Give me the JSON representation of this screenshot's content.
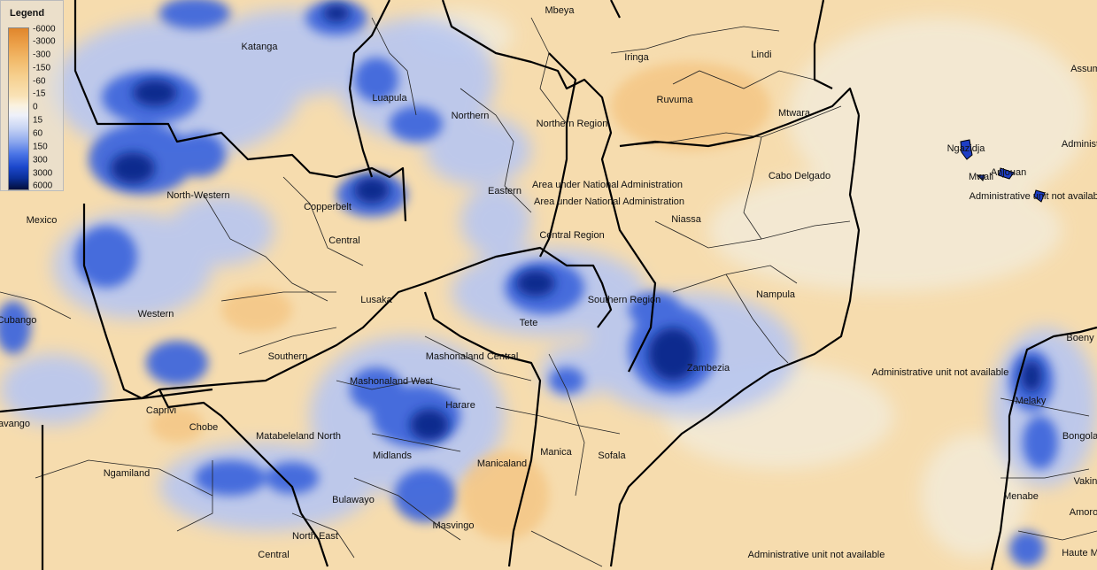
{
  "legend": {
    "title": "Legend",
    "ticks": [
      "-6000",
      "-3000",
      "-300",
      "-150",
      "-60",
      "-15",
      "0",
      "15",
      "60",
      "150",
      "300",
      "3000",
      "6000"
    ],
    "colors": {
      "dry_strong": "#e0862c",
      "dry_mild": "#f6dcae",
      "neutral": "#fbf2e0",
      "wet_mild": "#8fa9ee",
      "wet_strong": "#0a2e98",
      "wet_extreme": "#030f3c"
    }
  },
  "regions": [
    "Mbeya",
    "Katanga",
    "Iringa",
    "Lindi",
    "Ruvuma",
    "Mtwara",
    "Luapula",
    "Northern",
    "Northern Region",
    "North-Western",
    "Copperbelt",
    "Eastern",
    "Area under National Administration",
    "Area under National Administration",
    "Niassa",
    "Cabo Delgado",
    "Central Region",
    "Mexico",
    "Central",
    "Lusaka",
    "Nampula",
    "Tete",
    "Southern Region",
    "Cubango",
    "Western",
    "Southern",
    "Mashonaland Central",
    "Zambezia",
    "Mashonaland West",
    "Harare",
    "Caprivi",
    "Chobe",
    "avango",
    "Matabeleland North",
    "Ngamiland",
    "Midlands",
    "Manicaland",
    "Manica",
    "Sofala",
    "Bulawayo",
    "Masvingo",
    "North East",
    "Central",
    "Administrative unit not available",
    "Administrative unit not available",
    "Administrative unit not available",
    "Ngazidja",
    "Mwali",
    "Anjouan",
    "Administ",
    "Assum",
    "Boeny",
    "Melaky",
    "Bongola",
    "Vakin",
    "Amoro",
    "Menabe",
    "Haute M"
  ]
}
